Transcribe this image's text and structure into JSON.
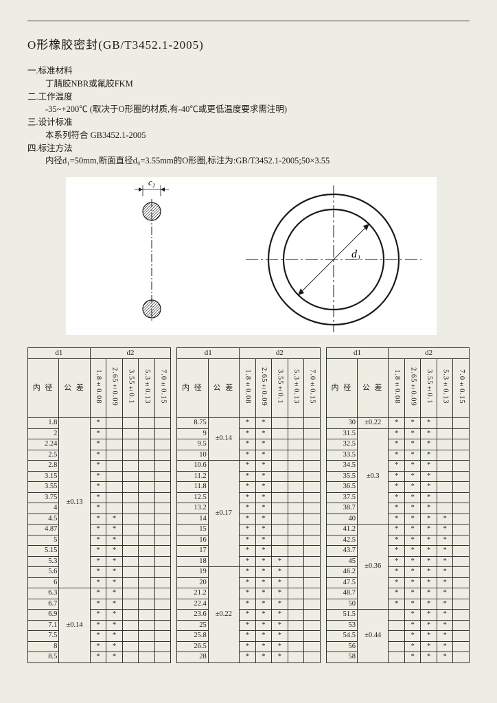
{
  "title": "O形橡胶密封(GB/T3452.1-2005)",
  "sections": [
    {
      "num": "一",
      "label": ".标准材料",
      "body": "丁腈胶NBR或氟胶FKM"
    },
    {
      "num": "二",
      "label": ".工作温度",
      "body": "-35~+200℃ (取决于O形圈的材质,有-40℃或更低温度要求需注明)"
    },
    {
      "num": "三",
      "label": ".设计标准",
      "body": "本系列符合 GB3452.1-2005"
    },
    {
      "num": "四",
      "label": ".标注方法",
      "body": "内径d₁=50mm,断面直径d₀=3.55mm的O形圈,标注为:GB/T3452.1-2005;50×3.55"
    }
  ],
  "diagram": {
    "labels": {
      "d2": "c₂",
      "d1": "d₁"
    },
    "colors": {
      "stroke": "#1a1a1a",
      "fill_hatch": "#555",
      "bg": "#ffffff"
    }
  },
  "headers": {
    "d1": "d1",
    "d2": "d2",
    "inner": "内 径",
    "tol": "公 差",
    "d2cols": [
      "1.8±0.08",
      "2.65±0.09",
      "3.55±0.1",
      "5.3±0.13",
      "7.0±0.15"
    ]
  },
  "blocks": [
    {
      "rows": [
        {
          "d": "1.8",
          "t": "±0.13",
          "m": [
            1,
            0,
            0,
            0,
            0
          ]
        },
        {
          "d": "2",
          "t": "",
          "m": [
            1,
            0,
            0,
            0,
            0
          ]
        },
        {
          "d": "2.24",
          "t": "",
          "m": [
            1,
            0,
            0,
            0,
            0
          ]
        },
        {
          "d": "2.5",
          "t": "",
          "m": [
            1,
            0,
            0,
            0,
            0
          ]
        },
        {
          "d": "2.8",
          "t": "",
          "m": [
            1,
            0,
            0,
            0,
            0
          ]
        },
        {
          "d": "3.15",
          "t": "",
          "m": [
            1,
            0,
            0,
            0,
            0
          ]
        },
        {
          "d": "3.55",
          "t": "",
          "m": [
            1,
            0,
            0,
            0,
            0
          ]
        },
        {
          "d": "3.75",
          "t": "",
          "m": [
            1,
            0,
            0,
            0,
            0
          ]
        },
        {
          "d": "4",
          "t": "",
          "m": [
            1,
            0,
            0,
            0,
            0
          ]
        },
        {
          "d": "4.5",
          "t": "",
          "m": [
            1,
            1,
            0,
            0,
            0
          ]
        },
        {
          "d": "4.87",
          "t": "",
          "m": [
            1,
            1,
            0,
            0,
            0
          ]
        },
        {
          "d": "5",
          "t": "",
          "m": [
            1,
            1,
            0,
            0,
            0
          ]
        },
        {
          "d": "5.15",
          "t": "",
          "m": [
            1,
            1,
            0,
            0,
            0
          ]
        },
        {
          "d": "5.3",
          "t": "",
          "m": [
            1,
            1,
            0,
            0,
            0
          ]
        },
        {
          "d": "5.6",
          "t": "",
          "m": [
            1,
            1,
            0,
            0,
            0
          ]
        },
        {
          "d": "6",
          "t": "",
          "m": [
            1,
            1,
            0,
            0,
            0
          ]
        },
        {
          "d": "6.3",
          "t": "±0.14",
          "m": [
            1,
            1,
            0,
            0,
            0
          ]
        },
        {
          "d": "6.7",
          "t": "",
          "m": [
            1,
            1,
            0,
            0,
            0
          ]
        },
        {
          "d": "6.9",
          "t": "",
          "m": [
            1,
            1,
            0,
            0,
            0
          ]
        },
        {
          "d": "7.1",
          "t": "",
          "m": [
            1,
            1,
            0,
            0,
            0
          ]
        },
        {
          "d": "7.5",
          "t": "",
          "m": [
            1,
            1,
            0,
            0,
            0
          ]
        },
        {
          "d": "8",
          "t": "",
          "m": [
            1,
            1,
            0,
            0,
            0
          ]
        },
        {
          "d": "8.5",
          "t": "",
          "m": [
            1,
            1,
            0,
            0,
            0
          ]
        }
      ]
    },
    {
      "rows": [
        {
          "d": "8.75",
          "t": "±0.14",
          "m": [
            1,
            1,
            0,
            0,
            0
          ]
        },
        {
          "d": "9",
          "t": "",
          "m": [
            1,
            1,
            0,
            0,
            0
          ]
        },
        {
          "d": "9.5",
          "t": "",
          "m": [
            1,
            1,
            0,
            0,
            0
          ]
        },
        {
          "d": "10",
          "t": "",
          "m": [
            1,
            1,
            0,
            0,
            0
          ]
        },
        {
          "d": "10.6",
          "t": "±0.17",
          "m": [
            1,
            1,
            0,
            0,
            0
          ]
        },
        {
          "d": "11.2",
          "t": "",
          "m": [
            1,
            1,
            0,
            0,
            0
          ]
        },
        {
          "d": "11.8",
          "t": "",
          "m": [
            1,
            1,
            0,
            0,
            0
          ]
        },
        {
          "d": "12.5",
          "t": "",
          "m": [
            1,
            1,
            0,
            0,
            0
          ]
        },
        {
          "d": "13.2",
          "t": "",
          "m": [
            1,
            1,
            0,
            0,
            0
          ]
        },
        {
          "d": "14",
          "t": "",
          "m": [
            1,
            1,
            0,
            0,
            0
          ]
        },
        {
          "d": "15",
          "t": "",
          "m": [
            1,
            1,
            0,
            0,
            0
          ]
        },
        {
          "d": "16",
          "t": "",
          "m": [
            1,
            1,
            0,
            0,
            0
          ]
        },
        {
          "d": "17",
          "t": "",
          "m": [
            1,
            1,
            0,
            0,
            0
          ]
        },
        {
          "d": "18",
          "t": "",
          "m": [
            1,
            1,
            1,
            0,
            0
          ]
        },
        {
          "d": "19",
          "t": "±0.22",
          "m": [
            1,
            1,
            1,
            0,
            0
          ]
        },
        {
          "d": "20",
          "t": "",
          "m": [
            1,
            1,
            1,
            0,
            0
          ]
        },
        {
          "d": "21.2",
          "t": "",
          "m": [
            1,
            1,
            1,
            0,
            0
          ]
        },
        {
          "d": "22.4",
          "t": "",
          "m": [
            1,
            1,
            1,
            0,
            0
          ]
        },
        {
          "d": "23.6",
          "t": "",
          "m": [
            1,
            1,
            1,
            0,
            0
          ]
        },
        {
          "d": "25",
          "t": "",
          "m": [
            1,
            1,
            1,
            0,
            0
          ]
        },
        {
          "d": "25.8",
          "t": "",
          "m": [
            1,
            1,
            1,
            0,
            0
          ]
        },
        {
          "d": "26.5",
          "t": "",
          "m": [
            1,
            1,
            1,
            0,
            0
          ]
        },
        {
          "d": "28",
          "t": "",
          "m": [
            1,
            1,
            1,
            0,
            0
          ]
        }
      ]
    },
    {
      "rows": [
        {
          "d": "30",
          "t": "±0.22",
          "m": [
            1,
            1,
            1,
            0,
            0
          ]
        },
        {
          "d": "31.5",
          "t": "±0.3",
          "m": [
            1,
            1,
            1,
            0,
            0
          ]
        },
        {
          "d": "32.5",
          "t": "",
          "m": [
            1,
            1,
            1,
            0,
            0
          ]
        },
        {
          "d": "33.5",
          "t": "",
          "m": [
            1,
            1,
            1,
            0,
            0
          ]
        },
        {
          "d": "34.5",
          "t": "",
          "m": [
            1,
            1,
            1,
            0,
            0
          ]
        },
        {
          "d": "35.5",
          "t": "",
          "m": [
            1,
            1,
            1,
            0,
            0
          ]
        },
        {
          "d": "36.5",
          "t": "",
          "m": [
            1,
            1,
            1,
            0,
            0
          ]
        },
        {
          "d": "37.5",
          "t": "",
          "m": [
            1,
            1,
            1,
            0,
            0
          ]
        },
        {
          "d": "38.7",
          "t": "",
          "m": [
            1,
            1,
            1,
            0,
            0
          ]
        },
        {
          "d": "40",
          "t": "",
          "m": [
            1,
            1,
            1,
            1,
            0
          ]
        },
        {
          "d": "41.2",
          "t": "±0.36",
          "m": [
            1,
            1,
            1,
            1,
            0
          ]
        },
        {
          "d": "42.5",
          "t": "",
          "m": [
            1,
            1,
            1,
            1,
            0
          ]
        },
        {
          "d": "43.7",
          "t": "",
          "m": [
            1,
            1,
            1,
            1,
            0
          ]
        },
        {
          "d": "45",
          "t": "",
          "m": [
            1,
            1,
            1,
            1,
            0
          ]
        },
        {
          "d": "46.2",
          "t": "",
          "m": [
            1,
            1,
            1,
            1,
            0
          ]
        },
        {
          "d": "47.5",
          "t": "",
          "m": [
            1,
            1,
            1,
            1,
            0
          ]
        },
        {
          "d": "48.7",
          "t": "",
          "m": [
            1,
            1,
            1,
            1,
            0
          ]
        },
        {
          "d": "50",
          "t": "",
          "m": [
            1,
            1,
            1,
            1,
            0
          ]
        },
        {
          "d": "51.5",
          "t": "±0.44",
          "m": [
            0,
            1,
            1,
            1,
            0
          ]
        },
        {
          "d": "53",
          "t": "",
          "m": [
            0,
            1,
            1,
            1,
            0
          ]
        },
        {
          "d": "54.5",
          "t": "",
          "m": [
            0,
            1,
            1,
            1,
            0
          ]
        },
        {
          "d": "56",
          "t": "",
          "m": [
            0,
            1,
            1,
            1,
            0
          ]
        },
        {
          "d": "58",
          "t": "",
          "m": [
            0,
            1,
            1,
            1,
            0
          ]
        }
      ]
    }
  ]
}
